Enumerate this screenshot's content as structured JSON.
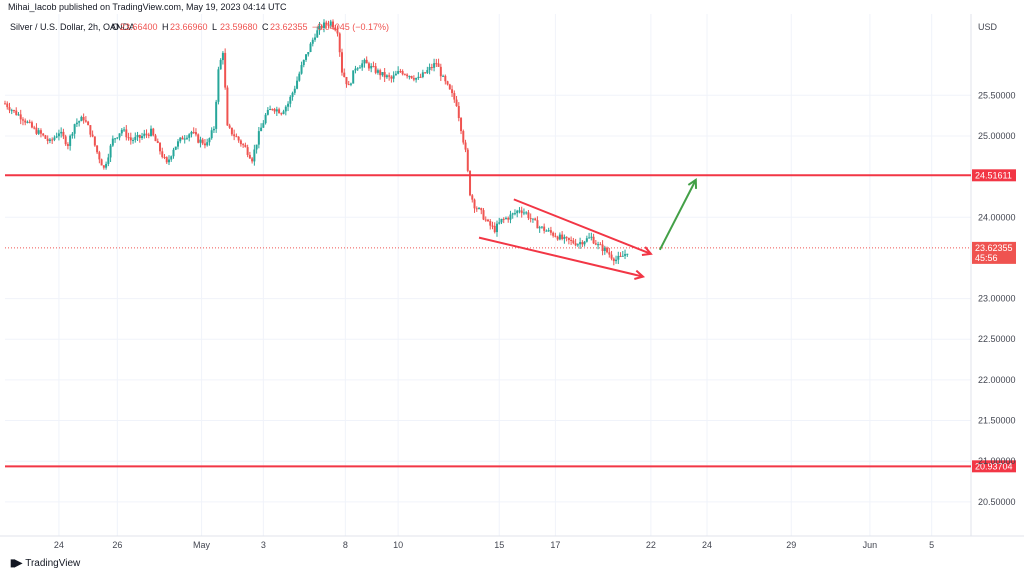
{
  "publisher_line": "Mihai_Iacob published on TradingView.com, May 19, 2023 04:14 UTC",
  "footer": {
    "brand": "TradingView",
    "logo_icon": "tradingview-logo-icon"
  },
  "colors": {
    "up": "#26a69a",
    "down": "#ef5350",
    "level": "#f23645",
    "pattern": "#f23645",
    "arrow": "#43a047",
    "grid": "#f0f3fa"
  },
  "chart_data": {
    "type": "candlestick",
    "symbol": "Silver / U.S. Dollar, 2h, OANDA",
    "ohlc": [
      {
        "label": "O",
        "value": "23.66400"
      },
      {
        "label": "H",
        "value": "23.66960"
      },
      {
        "label": "L",
        "value": "23.59680"
      },
      {
        "label": "C",
        "value": "23.62355"
      }
    ],
    "change": "−0.04045 (−0.17%)",
    "currency": "USD",
    "y_ticks": [
      "25.50000",
      "25.00000",
      "24.00000",
      "23.00000",
      "22.50000",
      "22.00000",
      "21.50000",
      "21.00000",
      "20.50000"
    ],
    "y_tick_values": [
      25.5,
      25.0,
      24.0,
      23.0,
      22.5,
      22.0,
      21.5,
      21.0,
      20.5
    ],
    "x_ticks": [
      "24",
      "26",
      "May",
      "3",
      "8",
      "10",
      "15",
      "17",
      "22",
      "24",
      "29",
      "Jun",
      "5"
    ],
    "x_tick_slots": [
      48,
      100,
      175,
      230,
      303,
      350,
      440,
      490,
      575,
      625,
      700,
      770,
      825
    ],
    "ylim": [
      20.08,
      26.5
    ],
    "total_slots": 860,
    "levels": [
      {
        "name": "resistance",
        "value": 24.51611,
        "label": "24.51611"
      },
      {
        "name": "support",
        "value": 20.93704,
        "label": "20.93704"
      }
    ],
    "current": {
      "value": 23.62355,
      "label": "23.62355",
      "countdown": "45:56"
    },
    "falling_wedge": {
      "upper": [
        [
          453,
          24.22
        ],
        [
          575,
          23.55
        ]
      ],
      "lower": [
        [
          422,
          23.75
        ],
        [
          568,
          23.27
        ]
      ]
    },
    "projection_arrow": [
      [
        583,
        23.6
      ],
      [
        615,
        24.46
      ]
    ],
    "path": [
      [
        0,
        25.4
      ],
      [
        8,
        25.3
      ],
      [
        16,
        25.22
      ],
      [
        24,
        25.1
      ],
      [
        32,
        25.02
      ],
      [
        40,
        24.92
      ],
      [
        48,
        25.05
      ],
      [
        56,
        24.9
      ],
      [
        62,
        25.15
      ],
      [
        70,
        25.22
      ],
      [
        76,
        25.05
      ],
      [
        82,
        24.8
      ],
      [
        88,
        24.6
      ],
      [
        96,
        24.95
      ],
      [
        104,
        25.08
      ],
      [
        112,
        24.95
      ],
      [
        120,
        24.98
      ],
      [
        130,
        25.05
      ],
      [
        138,
        24.82
      ],
      [
        144,
        24.65
      ],
      [
        150,
        24.85
      ],
      [
        158,
        24.98
      ],
      [
        166,
        25.05
      ],
      [
        172,
        24.95
      ],
      [
        180,
        24.9
      ],
      [
        186,
        25.1
      ],
      [
        190,
        25.8
      ],
      [
        194,
        26.05
      ],
      [
        198,
        25.1
      ],
      [
        206,
        24.98
      ],
      [
        214,
        24.85
      ],
      [
        220,
        24.72
      ],
      [
        226,
        25.02
      ],
      [
        232,
        25.25
      ],
      [
        238,
        25.35
      ],
      [
        246,
        25.3
      ],
      [
        252,
        25.4
      ],
      [
        258,
        25.6
      ],
      [
        264,
        25.85
      ],
      [
        270,
        26.05
      ],
      [
        276,
        26.25
      ],
      [
        282,
        26.35
      ],
      [
        290,
        26.4
      ],
      [
        296,
        26.3
      ],
      [
        300,
        25.8
      ],
      [
        306,
        25.6
      ],
      [
        312,
        25.85
      ],
      [
        320,
        25.9
      ],
      [
        328,
        25.82
      ],
      [
        336,
        25.75
      ],
      [
        344,
        25.7
      ],
      [
        352,
        25.8
      ],
      [
        360,
        25.75
      ],
      [
        368,
        25.7
      ],
      [
        376,
        25.8
      ],
      [
        384,
        25.9
      ],
      [
        390,
        25.7
      ],
      [
        396,
        25.55
      ],
      [
        402,
        25.4
      ],
      [
        406,
        25.1
      ],
      [
        410,
        24.8
      ],
      [
        414,
        24.3
      ],
      [
        418,
        24.15
      ],
      [
        424,
        24.05
      ],
      [
        430,
        23.92
      ],
      [
        436,
        23.85
      ],
      [
        442,
        23.96
      ],
      [
        448,
        24.0
      ],
      [
        454,
        24.05
      ],
      [
        458,
        24.1
      ],
      [
        464,
        24.05
      ],
      [
        470,
        23.95
      ],
      [
        476,
        23.88
      ],
      [
        484,
        23.82
      ],
      [
        490,
        23.78
      ],
      [
        498,
        23.72
      ],
      [
        504,
        23.7
      ],
      [
        510,
        23.68
      ],
      [
        516,
        23.72
      ],
      [
        522,
        23.75
      ],
      [
        528,
        23.65
      ],
      [
        534,
        23.6
      ],
      [
        540,
        23.52
      ],
      [
        544,
        23.48
      ],
      [
        548,
        23.5
      ],
      [
        552,
        23.55
      ],
      [
        556,
        23.62
      ]
    ]
  }
}
